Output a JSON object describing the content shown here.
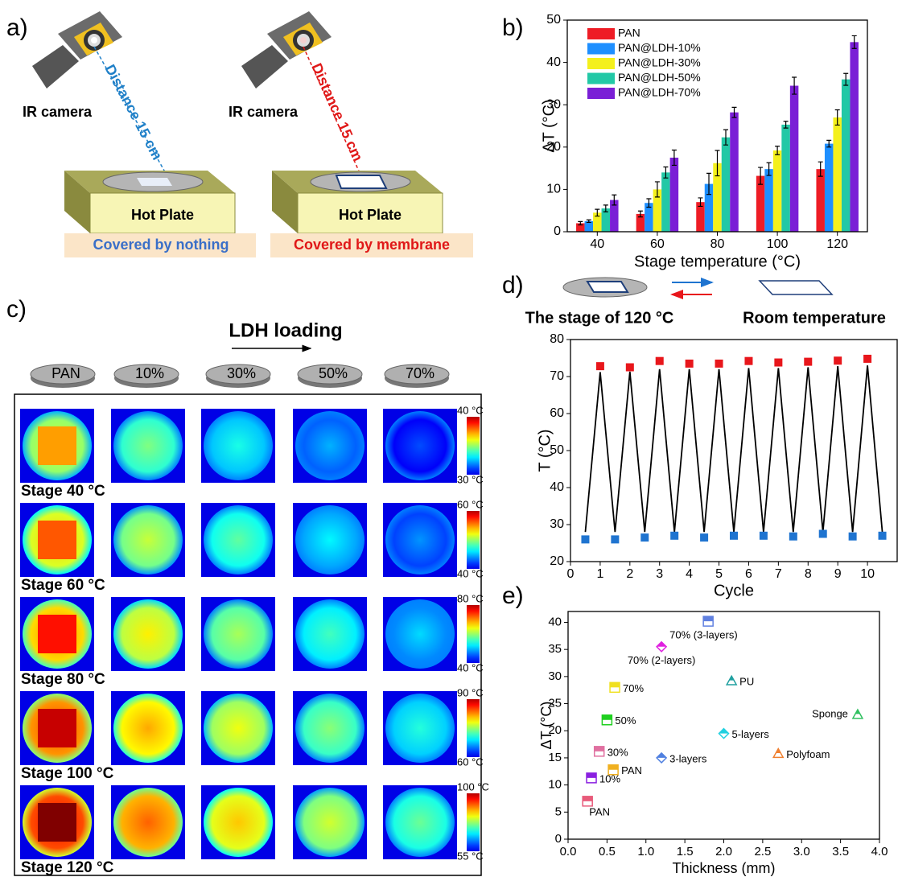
{
  "panels": {
    "a": "a)",
    "b": "b)",
    "c": "c)",
    "d": "d)",
    "e": "e)"
  },
  "diagram": {
    "left": {
      "camera": "IR camera",
      "distance": "Distance 15 cm",
      "plate": "Hot Plate",
      "caption": "Covered by nothing"
    },
    "right": {
      "camera": "IR camera",
      "distance": "Distance 15 cm",
      "plate": "Hot Plate",
      "caption": "Covered by membrane"
    }
  },
  "thermal": {
    "title": "LDH loading",
    "samples": [
      "PAN",
      "10%",
      "30%",
      "50%",
      "70%"
    ],
    "rows": [
      {
        "label": "Stage 40 °C",
        "max": "40 °C",
        "min": "30 °C"
      },
      {
        "label": "Stage 60 °C",
        "max": "60 °C",
        "min": "40 °C"
      },
      {
        "label": "Stage 80 °C",
        "max": "80 °C",
        "min": "40 °C"
      },
      {
        "label": "Stage 100 °C",
        "max": "90 °C",
        "min": "60 °C"
      },
      {
        "label": "Stage 120 °C",
        "max": "100 °C",
        "min": "55 °C"
      }
    ]
  },
  "chart_data": [
    {
      "type": "bar",
      "x_label": "Stage temperature (°C)",
      "y_label": "ΔT (°C)",
      "categories": [
        "40",
        "60",
        "80",
        "100",
        "120"
      ],
      "series": [
        {
          "name": "PAN",
          "color": "#ee1c25",
          "values": [
            2,
            4.2,
            7,
            13.2,
            14.8
          ],
          "errors": [
            0.4,
            0.7,
            1,
            2,
            1.7
          ]
        },
        {
          "name": "PAN@LDH-10%",
          "color": "#1e8fff",
          "values": [
            2.5,
            6.8,
            11.3,
            14.8,
            20.8
          ],
          "errors": [
            0.3,
            1,
            2.5,
            1.5,
            0.8
          ]
        },
        {
          "name": "PAN@LDH-30%",
          "color": "#f4f01c",
          "values": [
            4.5,
            10,
            16.2,
            19.2,
            27
          ],
          "errors": [
            0.8,
            1.8,
            3,
            1,
            1.8
          ]
        },
        {
          "name": "PAN@LDH-50%",
          "color": "#22c8a6",
          "values": [
            5.5,
            14,
            22.3,
            25.3,
            36
          ],
          "errors": [
            0.8,
            1.3,
            1.8,
            0.8,
            1.4
          ]
        },
        {
          "name": "PAN@LDH-70%",
          "color": "#7a1fd6",
          "values": [
            7.5,
            17.5,
            28.2,
            34.5,
            44.8
          ],
          "errors": [
            1.2,
            1.8,
            1.2,
            2,
            1.5
          ]
        }
      ],
      "ylim": [
        0,
        50
      ],
      "yticks": [
        0,
        10,
        20,
        30,
        40,
        50
      ],
      "legend": "upper left"
    },
    {
      "type": "line",
      "x_label": "Cycle",
      "y_label": "T (°C)",
      "annotations": [
        "The stage of 120 °C",
        "Room temperature"
      ],
      "series": [
        {
          "color": "#000000",
          "marker": "none",
          "x": [
            0.5,
            1,
            1.5,
            2,
            2.5,
            3,
            3.5,
            4,
            4.5,
            5,
            5.5,
            6,
            6.5,
            7,
            7.5,
            8,
            8.5,
            9,
            9.5,
            10,
            10.5
          ],
          "values": [
            28,
            71.2,
            28,
            71.3,
            28,
            72,
            28,
            72,
            28,
            72,
            28,
            72.3,
            28,
            72.3,
            28,
            72.5,
            28,
            72.8,
            28,
            73,
            28
          ]
        },
        {
          "color": "#e8161b",
          "marker": "square",
          "x": [
            1,
            2,
            3,
            4,
            5,
            6,
            7,
            8,
            9,
            10
          ],
          "values": [
            72.8,
            72.5,
            74.2,
            73.5,
            73.5,
            74.2,
            73.8,
            74,
            74.3,
            74.8
          ]
        },
        {
          "color": "#1f74d0",
          "marker": "square",
          "x": [
            0.5,
            1.5,
            2.5,
            3.5,
            4.5,
            5.5,
            6.5,
            7.5,
            8.5,
            9.5,
            10.5
          ],
          "values": [
            26,
            26,
            26.5,
            27,
            26.5,
            27,
            27,
            26.8,
            27.5,
            26.8,
            27
          ]
        }
      ],
      "xlim": [
        0,
        11
      ],
      "xticks": [
        0,
        1,
        2,
        3,
        4,
        5,
        6,
        7,
        8,
        9,
        10
      ],
      "ylim": [
        20,
        80
      ],
      "yticks": [
        20,
        30,
        40,
        50,
        60,
        70,
        80
      ]
    },
    {
      "type": "scatter",
      "x_label": "Thickness (mm)",
      "y_label": "ΔT (°C)",
      "series": [
        {
          "name": "PAN",
          "color": "#e85a7a",
          "marker": "square",
          "x": [
            0.25
          ],
          "values": [
            7
          ]
        },
        {
          "name": "10%",
          "color": "#8a20e0",
          "marker": "square",
          "x": [
            0.3
          ],
          "values": [
            11.3
          ]
        },
        {
          "name": "PAN",
          "color": "#f0b020",
          "marker": "square",
          "x": [
            0.58
          ],
          "values": [
            12.8
          ]
        },
        {
          "name": "30%",
          "color": "#e070a0",
          "marker": "square",
          "x": [
            0.4
          ],
          "values": [
            16.2
          ]
        },
        {
          "name": "50%",
          "color": "#20d020",
          "marker": "square",
          "x": [
            0.5
          ],
          "values": [
            22
          ]
        },
        {
          "name": "70%",
          "color": "#f0e020",
          "marker": "square",
          "x": [
            0.6
          ],
          "values": [
            28
          ]
        },
        {
          "name": "70% (2-layers)",
          "color": "#e020e0",
          "marker": "diamond",
          "x": [
            1.2
          ],
          "values": [
            35.5
          ]
        },
        {
          "name": "70% (3-layers)",
          "color": "#6080e0",
          "marker": "square",
          "x": [
            1.8
          ],
          "values": [
            40.2
          ]
        },
        {
          "name": "PU",
          "color": "#20a0a0",
          "marker": "triangle",
          "x": [
            2.1
          ],
          "values": [
            29.2
          ]
        },
        {
          "name": "Sponge",
          "color": "#30c060",
          "marker": "triangle",
          "x": [
            3.72
          ],
          "values": [
            23
          ]
        },
        {
          "name": "5-layers",
          "color": "#20d0e0",
          "marker": "diamond",
          "x": [
            2.0
          ],
          "values": [
            19.5
          ]
        },
        {
          "name": "Polyfoam",
          "color": "#f08030",
          "marker": "triangle",
          "x": [
            2.7
          ],
          "values": [
            15.8
          ]
        },
        {
          "name": "3-layers",
          "color": "#5080e0",
          "marker": "diamond",
          "x": [
            1.2
          ],
          "values": [
            15
          ]
        }
      ],
      "xlim": [
        0,
        4
      ],
      "xticks": [
        {
          "value": 0,
          "label": "0.0"
        },
        0.5,
        {
          "value": 1,
          "label": "1.0"
        },
        1.5,
        {
          "value": 2,
          "label": "2.0"
        },
        2.5,
        {
          "value": 3,
          "label": "3.0"
        },
        3.5,
        {
          "value": 4,
          "label": "4.0"
        }
      ],
      "ylim": [
        0,
        42
      ],
      "yticks": [
        0,
        5,
        10,
        15,
        20,
        25,
        30,
        35,
        40
      ]
    }
  ]
}
